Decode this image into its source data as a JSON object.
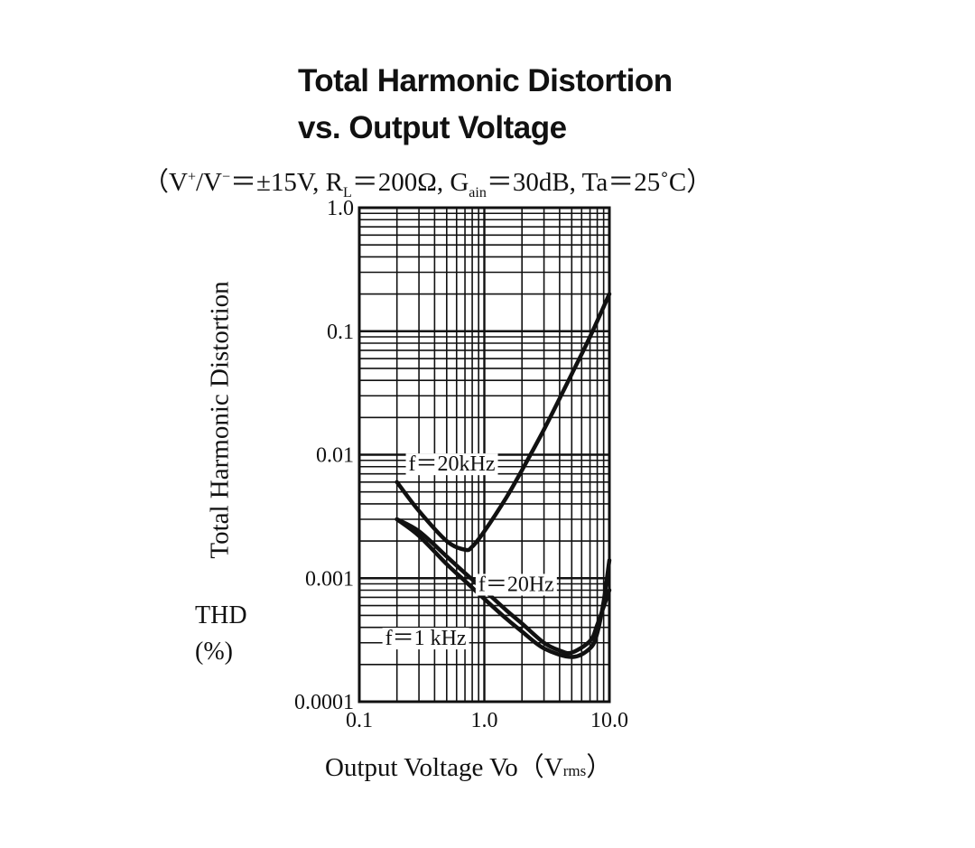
{
  "title_line1": "Total Harmonic Distortion",
  "title_line2": "vs. Output Voltage",
  "conditions": {
    "open": "（V",
    "vplus_sup": "+",
    "slash": "/V",
    "vminus_sup": "−",
    "supply": "＝±15V,  R",
    "rl_sub": "L",
    "rl": "＝200Ω,  G",
    "gain_sub": "ain",
    "gain_ta": "＝30dB,  Ta＝25˚C）"
  },
  "y_axis": {
    "label": "Total Harmonic Distortion",
    "symbol": "THD",
    "unit": "(%)"
  },
  "x_axis": {
    "label_main": "Output Voltage  Vo（V",
    "label_sub": "rms",
    "label_close": "）"
  },
  "chart_data": {
    "type": "line",
    "title": "Total Harmonic Distortion vs. Output Voltage",
    "subtitle": "(V+/V− = ±15V, RL = 200Ω, Gain = 30dB, Ta = 25˚C)",
    "xlabel": "Output Voltage Vo (Vrms)",
    "ylabel": "Total Harmonic Distortion THD (%)",
    "x_scale": "log",
    "y_scale": "log",
    "xlim": [
      0.1,
      10.0
    ],
    "ylim": [
      0.0001,
      1.0
    ],
    "x_ticks": [
      {
        "value": 0.1,
        "label": "0.1"
      },
      {
        "value": 1.0,
        "label": "1.0"
      },
      {
        "value": 10.0,
        "label": "10.0"
      }
    ],
    "y_ticks": [
      {
        "value": 1.0,
        "label": "1.0"
      },
      {
        "value": 0.1,
        "label": "0.1"
      },
      {
        "value": 0.01,
        "label": "0.01"
      },
      {
        "value": 0.001,
        "label": "0.001"
      },
      {
        "value": 0.0001,
        "label": "0.0001"
      }
    ],
    "grid": true,
    "series": [
      {
        "name": "f＝20kHz",
        "label_at": [
          0.55,
          0.0085
        ],
        "x": [
          0.2,
          0.3,
          0.5,
          0.7,
          0.8,
          1.0,
          1.5,
          2.0,
          3.0,
          5.0,
          7.0,
          10.0
        ],
        "y": [
          0.006,
          0.0035,
          0.002,
          0.0017,
          0.0018,
          0.0024,
          0.0045,
          0.0075,
          0.016,
          0.045,
          0.09,
          0.2
        ]
      },
      {
        "name": "f＝20Hz",
        "label_at": [
          1.8,
          0.0009
        ],
        "x": [
          0.2,
          0.3,
          0.5,
          0.7,
          1.0,
          1.5,
          2.0,
          3.0,
          4.0,
          5.0,
          7.0,
          8.0,
          10.0
        ],
        "y": [
          0.003,
          0.0024,
          0.0015,
          0.0011,
          0.0008,
          0.00055,
          0.00043,
          0.0003,
          0.00026,
          0.00025,
          0.00031,
          0.00042,
          0.0008
        ]
      },
      {
        "name": "f＝1 kHz",
        "label_at": [
          0.34,
          0.00033
        ],
        "x": [
          0.2,
          0.3,
          0.5,
          0.7,
          1.0,
          1.5,
          2.0,
          3.0,
          5.0,
          7.0,
          8.0,
          9.0,
          10.0
        ],
        "y": [
          0.003,
          0.0022,
          0.0013,
          0.00095,
          0.00068,
          0.00047,
          0.00037,
          0.00027,
          0.00023,
          0.00027,
          0.00036,
          0.00065,
          0.0014
        ]
      }
    ]
  }
}
